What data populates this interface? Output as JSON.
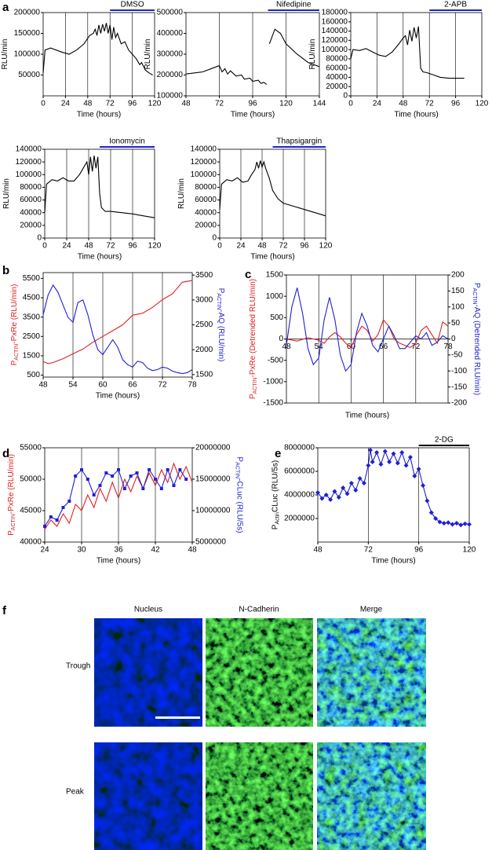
{
  "panel_labels": [
    "a",
    "b",
    "c",
    "d",
    "e",
    "f"
  ],
  "chart_data": [
    {
      "type": "line",
      "xlabel": "Time (hours)",
      "ylabel": [
        "RLU/min"
      ],
      "xlim": [
        0,
        120
      ],
      "xticks": [
        0,
        24,
        48,
        72,
        96,
        120
      ],
      "ylim": [
        0,
        200000
      ],
      "yticks": [
        50000,
        100000,
        150000,
        200000
      ],
      "xgrid": true,
      "treatment": {
        "label": "DMSO",
        "start": 72,
        "end": 120,
        "color": "#2222cc"
      },
      "series": [
        {
          "color": "#000000",
          "x": [
            0,
            2,
            8,
            20,
            28,
            36,
            44,
            50,
            54,
            56,
            58,
            60,
            62,
            64,
            66,
            68,
            70,
            72,
            74,
            76,
            78,
            80,
            84,
            88,
            92,
            96,
            100,
            104,
            106,
            110,
            114,
            118
          ],
          "values": [
            55000,
            110000,
            115000,
            105000,
            100000,
            110000,
            125000,
            145000,
            150000,
            160000,
            145000,
            170000,
            150000,
            172000,
            155000,
            175000,
            150000,
            170000,
            135000,
            165000,
            140000,
            150000,
            125000,
            130000,
            110000,
            100000,
            90000,
            75000,
            80000,
            62000,
            55000,
            50000
          ]
        }
      ]
    },
    {
      "type": "line",
      "xlabel": "Time (hours)",
      "ylabel": [
        "RLU/min"
      ],
      "xlim": [
        48,
        144
      ],
      "xticks": [
        48,
        72,
        96,
        120,
        144
      ],
      "ylim": [
        100000,
        500000
      ],
      "yticks": [
        100000,
        200000,
        300000,
        400000,
        500000
      ],
      "xgrid": true,
      "treatment": {
        "label": "Nifedipine",
        "start": 107,
        "end": 144,
        "color": "#2222cc"
      },
      "series": [
        {
          "color": "#000000",
          "x": [
            48,
            60,
            68,
            72,
            74,
            76,
            78,
            80,
            84,
            88,
            90,
            94,
            96,
            100,
            102,
            104,
            106,
            107,
            108,
            112,
            116,
            120,
            128,
            136,
            144
          ],
          "values": [
            205000,
            215000,
            235000,
            245000,
            215000,
            230000,
            205000,
            220000,
            195000,
            200000,
            180000,
            185000,
            170000,
            175000,
            160000,
            165000,
            155000,
            null,
            350000,
            420000,
            400000,
            350000,
            300000,
            260000,
            240000
          ]
        }
      ]
    },
    {
      "type": "line",
      "xlabel": "Time (hours)",
      "ylabel": [
        "RLU/min"
      ],
      "xlim": [
        0,
        120
      ],
      "xticks": [
        0,
        24,
        48,
        72,
        96,
        120
      ],
      "ylim": [
        0,
        180000
      ],
      "yticks": [
        0,
        20000,
        40000,
        60000,
        80000,
        100000,
        120000,
        140000,
        160000,
        180000
      ],
      "xgrid": true,
      "treatment": {
        "label": "2-APB",
        "start": 72,
        "end": 120,
        "color": "#2222cc"
      },
      "series": [
        {
          "color": "#000000",
          "x": [
            0,
            2,
            8,
            14,
            20,
            26,
            32,
            38,
            44,
            48,
            50,
            52,
            54,
            56,
            58,
            60,
            62,
            64,
            66,
            70,
            76,
            82,
            90,
            104
          ],
          "values": [
            80000,
            100000,
            98000,
            102000,
            95000,
            88000,
            85000,
            95000,
            112000,
            125000,
            130000,
            110000,
            142000,
            118000,
            148000,
            125000,
            150000,
            60000,
            52000,
            50000,
            45000,
            40000,
            38000,
            38000
          ]
        }
      ]
    },
    {
      "type": "line",
      "xlabel": "Time (hours)",
      "ylabel": [
        "RLU/min"
      ],
      "xlim": [
        0,
        120
      ],
      "xticks": [
        0,
        24,
        48,
        72,
        96,
        120
      ],
      "ylim": [
        0,
        140000
      ],
      "yticks": [
        0,
        20000,
        40000,
        60000,
        80000,
        100000,
        120000,
        140000
      ],
      "xgrid": true,
      "treatment": {
        "label": "Ionomycin",
        "start": 60,
        "end": 120,
        "color": "#2222cc"
      },
      "series": [
        {
          "color": "#000000",
          "x": [
            0,
            2,
            8,
            14,
            20,
            26,
            32,
            38,
            42,
            46,
            48,
            50,
            52,
            54,
            56,
            58,
            60,
            62,
            66,
            72,
            84,
            96,
            108,
            120
          ],
          "values": [
            40000,
            85000,
            92000,
            90000,
            95000,
            90000,
            90000,
            100000,
            110000,
            120000,
            100000,
            128000,
            105000,
            130000,
            110000,
            128000,
            70000,
            48000,
            42000,
            42000,
            40000,
            38000,
            35000,
            32000
          ]
        }
      ]
    },
    {
      "type": "line",
      "xlabel": "Time (hours)",
      "ylabel": [
        "RLU/min"
      ],
      "xlim": [
        0,
        120
      ],
      "xticks": [
        0,
        24,
        48,
        72,
        96,
        120
      ],
      "ylim": [
        0,
        140000
      ],
      "yticks": [
        0,
        20000,
        40000,
        60000,
        80000,
        100000,
        120000,
        140000
      ],
      "xgrid": true,
      "treatment": {
        "label": "Thapsigargin",
        "start": 60,
        "end": 120,
        "color": "#2222cc"
      },
      "series": [
        {
          "color": "#000000",
          "x": [
            0,
            2,
            8,
            14,
            20,
            26,
            32,
            36,
            40,
            42,
            44,
            46,
            48,
            50,
            52,
            56,
            60,
            66,
            72,
            84,
            96,
            108,
            120
          ],
          "values": [
            45000,
            85000,
            92000,
            90000,
            95000,
            88000,
            90000,
            100000,
            108000,
            120000,
            110000,
            122000,
            112000,
            120000,
            110000,
            95000,
            75000,
            62000,
            55000,
            50000,
            45000,
            40000,
            35000
          ]
        }
      ]
    },
    {
      "type": "line",
      "xlabel": "Time (hours)",
      "ylabel": [
        "P",
        "ACTIN",
        "-PxRe (RLU/min)"
      ],
      "y2label": [
        "P",
        "ACTIN",
        "-AQ (RLU/min)"
      ],
      "color_axis_labels": true,
      "xlim": [
        48,
        78
      ],
      "xticks": [
        48,
        54,
        60,
        66,
        72,
        78
      ],
      "ylim": [
        400,
        5800
      ],
      "yticks": [
        500,
        1500,
        2500,
        3500,
        4500,
        5500
      ],
      "y2lim": [
        1450,
        3550
      ],
      "y2ticks": [
        1500,
        2000,
        2500,
        3000,
        3500
      ],
      "xgrid": true,
      "series": [
        {
          "color": "#e02020",
          "x": [
            48,
            49,
            50,
            52,
            54,
            56,
            58,
            60,
            62,
            64,
            66,
            68,
            70,
            72,
            74,
            76,
            78
          ],
          "values": [
            1200,
            1100,
            1150,
            1350,
            1600,
            1850,
            2200,
            2500,
            2800,
            3100,
            3600,
            3700,
            4000,
            4400,
            4700,
            5300,
            5400
          ]
        },
        {
          "color": "#2020d0",
          "axis": "y2",
          "x": [
            48,
            49,
            50,
            51,
            52,
            53,
            54,
            55,
            56,
            57,
            58,
            59,
            60,
            61,
            62,
            63,
            64,
            65,
            66,
            67,
            68,
            69,
            70,
            71,
            72,
            73,
            74,
            75,
            76,
            77,
            78
          ],
          "values": [
            2700,
            3100,
            3300,
            3150,
            2900,
            2650,
            2550,
            2950,
            3000,
            2700,
            2300,
            2000,
            1900,
            2050,
            2200,
            2050,
            1800,
            1700,
            1650,
            1770,
            1740,
            1630,
            1580,
            1600,
            1650,
            1630,
            1570,
            1540,
            1520,
            1540,
            1600
          ]
        }
      ]
    },
    {
      "type": "line",
      "xlabel": "Time (hours)",
      "ylabel": [
        "P",
        "ACTIN",
        "-PxRe (Detrended RLU/min)"
      ],
      "y2label": [
        "P",
        "ACTIN",
        "-AQ (Detrended RLU/min)"
      ],
      "color_axis_labels": true,
      "xaxis_at_zero": true,
      "xlim": [
        48,
        78
      ],
      "xticks": [
        48,
        54,
        60,
        66,
        72,
        78
      ],
      "ylim": [
        -1500,
        1500
      ],
      "yticks": [
        -1500,
        -1000,
        -500,
        0,
        500,
        1000,
        1500
      ],
      "y2lim": [
        -200,
        200
      ],
      "y2ticks": [
        -200,
        -150,
        -100,
        -50,
        0,
        50,
        100,
        150,
        200
      ],
      "xgrid": true,
      "series": [
        {
          "color": "#e02020",
          "x": [
            48,
            50,
            52,
            54,
            55,
            56,
            57,
            58,
            59,
            60,
            61,
            62,
            63,
            64,
            65,
            66,
            67,
            68,
            69,
            70,
            71,
            72,
            73,
            74,
            75,
            76,
            77,
            78
          ],
          "values": [
            0,
            -50,
            30,
            -30,
            -100,
            50,
            150,
            50,
            -100,
            -200,
            100,
            300,
            200,
            -50,
            100,
            450,
            300,
            0,
            -100,
            -150,
            -200,
            -100,
            200,
            300,
            100,
            -100,
            400,
            300
          ]
        },
        {
          "color": "#2020d0",
          "axis": "y2",
          "x": [
            48,
            49,
            50,
            51,
            52,
            53,
            54,
            55,
            56,
            57,
            58,
            59,
            60,
            61,
            62,
            63,
            64,
            65,
            66,
            67,
            68,
            69,
            70,
            71,
            72,
            73,
            74,
            75,
            76,
            77,
            78
          ],
          "values": [
            -20,
            100,
            160,
            80,
            -30,
            -80,
            -60,
            60,
            130,
            60,
            -50,
            -100,
            -80,
            20,
            80,
            40,
            -20,
            -40,
            0,
            40,
            10,
            -30,
            -30,
            -10,
            10,
            0,
            20,
            -20,
            -10,
            10,
            0
          ]
        }
      ]
    },
    {
      "type": "line",
      "xlabel": "Time (hours)",
      "ylabel": [
        "P",
        "ACTIN",
        "-PxRe (RLU/min)"
      ],
      "y2label": [
        "P",
        "ACTIN",
        "-CLuc (RLU/5s)"
      ],
      "color_axis_labels": true,
      "xlim": [
        24,
        48
      ],
      "xticks": [
        24,
        30,
        36,
        42,
        48
      ],
      "ylim": [
        40000,
        55000
      ],
      "yticks": [
        40000,
        45000,
        50000,
        55000
      ],
      "y2lim": [
        5000000,
        20000000
      ],
      "y2ticks": [
        5000000,
        10000000,
        15000000,
        20000000
      ],
      "xgrid": true,
      "series": [
        {
          "color": "#e02020",
          "x": [
            24,
            25,
            26,
            27,
            28,
            29,
            30,
            31,
            32,
            33,
            34,
            35,
            36,
            37,
            38,
            39,
            40,
            41,
            42,
            43,
            44,
            45,
            46,
            47,
            48
          ],
          "values": [
            42000,
            43500,
            42500,
            44500,
            43000,
            46000,
            45000,
            47500,
            45500,
            48500,
            46500,
            49500,
            47000,
            50000,
            48000,
            50500,
            48500,
            51000,
            49000,
            51500,
            49500,
            52500,
            50000,
            52000,
            49500
          ]
        },
        {
          "color": "#2020d0",
          "axis": "y2",
          "marker": "square",
          "x": [
            24,
            25,
            26,
            27,
            28,
            29,
            30,
            31,
            32,
            33,
            34,
            35,
            36,
            37,
            38,
            39,
            40,
            41,
            42,
            43,
            44,
            45,
            46,
            47
          ],
          "values": [
            7500000,
            9000000,
            8500000,
            10500000,
            11500000,
            15500000,
            16500000,
            15000000,
            12500000,
            14000000,
            16000000,
            15500000,
            16500000,
            13500000,
            15500000,
            16000000,
            13500000,
            16500000,
            15000000,
            13500000,
            16500000,
            14000000,
            16500000,
            15000000
          ]
        }
      ]
    },
    {
      "type": "line",
      "xlabel": "Time (hours)",
      "ylabel": [
        "P",
        "Actin",
        "CLuc (RLU/5s)"
      ],
      "xlim": [
        48,
        120
      ],
      "xticks": [
        48,
        72,
        96,
        120
      ],
      "ylim": [
        0,
        8000000
      ],
      "yticks": [
        2000000,
        4000000,
        6000000,
        8000000
      ],
      "xgrid": true,
      "treatment": {
        "label": "2-DG",
        "start": 96,
        "end": 120,
        "color": "#000000"
      },
      "series": [
        {
          "color": "#2020d0",
          "marker": "diamond",
          "x": [
            48,
            50,
            52,
            54,
            56,
            58,
            60,
            62,
            64,
            66,
            68,
            70,
            72,
            73,
            74,
            76,
            78,
            80,
            82,
            84,
            86,
            88,
            90,
            92,
            94,
            96,
            98,
            100,
            102,
            104,
            106,
            108,
            110,
            112,
            114,
            116,
            118,
            120
          ],
          "values": [
            4200000,
            3700000,
            4000000,
            3600000,
            4300000,
            3800000,
            4600000,
            4100000,
            5000000,
            4400000,
            5400000,
            5000000,
            6500000,
            7800000,
            6800000,
            7600000,
            6600000,
            7700000,
            6800000,
            7500000,
            6700000,
            7600000,
            6500000,
            7200000,
            5600000,
            6200000,
            4800000,
            3500000,
            2500000,
            2000000,
            1700000,
            1600000,
            1650000,
            1500000,
            1600000,
            1450000,
            1550000,
            1500000
          ]
        }
      ]
    }
  ],
  "image_panel": {
    "columns": [
      "Nucleus",
      "N-Cadherin",
      "Merge"
    ],
    "rows": [
      "Trough",
      "Peak"
    ]
  }
}
